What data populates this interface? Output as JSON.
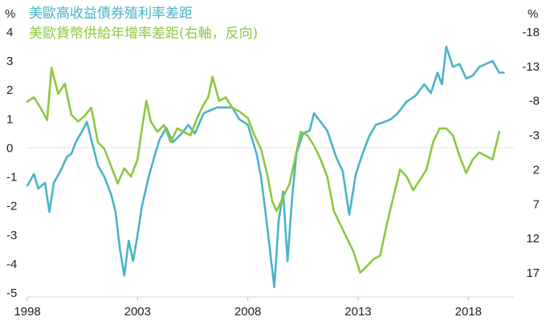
{
  "chart_data": {
    "type": "line",
    "left_unit": "%",
    "right_unit": "%",
    "y_left": {
      "range": [
        -5,
        4
      ],
      "ticks": [
        "4",
        "3",
        "2",
        "1",
        "0",
        "-1",
        "-2",
        "-3",
        "-4",
        "-5"
      ]
    },
    "y_right": {
      "range": [
        -18,
        17
      ],
      "reversed": true,
      "ticks": [
        "-18",
        "-13",
        "-8",
        "-3",
        "2",
        "7",
        "12",
        "17"
      ]
    },
    "x_ticks": [
      "1998",
      "2003",
      "2008",
      "2013",
      "2018"
    ],
    "grid": false,
    "legend_placement": "top-left",
    "series": [
      {
        "name": "美歐高收益債券殖利率差距",
        "axis": "left",
        "color": "#4BB3C7",
        "points": [
          [
            1998.0,
            -1.3
          ],
          [
            1998.3,
            -0.9
          ],
          [
            1998.5,
            -1.4
          ],
          [
            1998.8,
            -1.2
          ],
          [
            1999.0,
            -2.2
          ],
          [
            1999.2,
            -1.2
          ],
          [
            1999.5,
            -0.8
          ],
          [
            1999.8,
            -0.3
          ],
          [
            2000.0,
            -0.2
          ],
          [
            2000.2,
            0.2
          ],
          [
            2000.5,
            0.6
          ],
          [
            2000.7,
            0.9
          ],
          [
            2001.0,
            0.0
          ],
          [
            2001.2,
            -0.6
          ],
          [
            2001.5,
            -1.0
          ],
          [
            2001.8,
            -1.6
          ],
          [
            2002.0,
            -2.2
          ],
          [
            2002.2,
            -3.5
          ],
          [
            2002.4,
            -4.4
          ],
          [
            2002.6,
            -3.2
          ],
          [
            2002.8,
            -3.9
          ],
          [
            2003.0,
            -3.0
          ],
          [
            2003.2,
            -2.0
          ],
          [
            2003.5,
            -1.0
          ],
          [
            2003.8,
            -0.2
          ],
          [
            2004.0,
            0.3
          ],
          [
            2004.3,
            0.7
          ],
          [
            2004.6,
            0.2
          ],
          [
            2005.0,
            0.5
          ],
          [
            2005.3,
            0.8
          ],
          [
            2005.6,
            0.5
          ],
          [
            2006.0,
            1.2
          ],
          [
            2006.3,
            1.3
          ],
          [
            2006.6,
            1.4
          ],
          [
            2007.0,
            1.4
          ],
          [
            2007.3,
            1.4
          ],
          [
            2007.6,
            1.0
          ],
          [
            2008.0,
            0.8
          ],
          [
            2008.2,
            0.3
          ],
          [
            2008.4,
            -0.2
          ],
          [
            2008.6,
            -1.0
          ],
          [
            2008.8,
            -2.2
          ],
          [
            2009.0,
            -3.5
          ],
          [
            2009.2,
            -4.8
          ],
          [
            2009.4,
            -2.5
          ],
          [
            2009.6,
            -1.5
          ],
          [
            2009.8,
            -3.9
          ],
          [
            2010.0,
            -1.8
          ],
          [
            2010.2,
            -0.2
          ],
          [
            2010.5,
            0.5
          ],
          [
            2010.8,
            0.6
          ],
          [
            2011.0,
            1.2
          ],
          [
            2011.3,
            0.9
          ],
          [
            2011.6,
            0.6
          ],
          [
            2012.0,
            -0.3
          ],
          [
            2012.3,
            -0.8
          ],
          [
            2012.6,
            -2.3
          ],
          [
            2012.9,
            -0.9
          ],
          [
            2013.2,
            -0.2
          ],
          [
            2013.5,
            0.4
          ],
          [
            2013.8,
            0.8
          ],
          [
            2014.2,
            0.9
          ],
          [
            2014.5,
            1.0
          ],
          [
            2014.8,
            1.2
          ],
          [
            2015.2,
            1.6
          ],
          [
            2015.6,
            1.8
          ],
          [
            2016.0,
            2.2
          ],
          [
            2016.3,
            1.9
          ],
          [
            2016.6,
            2.6
          ],
          [
            2016.8,
            2.2
          ],
          [
            2017.0,
            3.5
          ],
          [
            2017.3,
            2.8
          ],
          [
            2017.6,
            2.9
          ],
          [
            2017.9,
            2.4
          ],
          [
            2018.2,
            2.5
          ],
          [
            2018.5,
            2.8
          ],
          [
            2018.8,
            2.9
          ],
          [
            2019.1,
            3.0
          ],
          [
            2019.4,
            2.6
          ],
          [
            2019.6,
            2.6
          ]
        ]
      },
      {
        "name": "美歐貨幣供給年增率差距(右軸，反向)",
        "axis": "right",
        "color": "#8CC83F",
        "points": [
          [
            1998.0,
            -7.9
          ],
          [
            1998.3,
            -8.5
          ],
          [
            1998.6,
            -7.0
          ],
          [
            1998.9,
            -5.2
          ],
          [
            1999.1,
            -12.8
          ],
          [
            1999.4,
            -9.0
          ],
          [
            1999.7,
            -10.5
          ],
          [
            2000.0,
            -6.0
          ],
          [
            2000.3,
            -5.0
          ],
          [
            2000.6,
            -5.8
          ],
          [
            2000.9,
            -7.0
          ],
          [
            2001.2,
            -2.0
          ],
          [
            2001.5,
            -1.0
          ],
          [
            2001.8,
            1.5
          ],
          [
            2002.1,
            4.0
          ],
          [
            2002.4,
            1.8
          ],
          [
            2002.7,
            3.0
          ],
          [
            2003.0,
            0.5
          ],
          [
            2003.2,
            -4.0
          ],
          [
            2003.4,
            -8.0
          ],
          [
            2003.6,
            -5.0
          ],
          [
            2003.9,
            -3.5
          ],
          [
            2004.2,
            -4.5
          ],
          [
            2004.5,
            -2.0
          ],
          [
            2004.8,
            -4.0
          ],
          [
            2005.1,
            -3.5
          ],
          [
            2005.4,
            -3.0
          ],
          [
            2005.7,
            -5.5
          ],
          [
            2006.0,
            -7.5
          ],
          [
            2006.2,
            -8.5
          ],
          [
            2006.4,
            -11.5
          ],
          [
            2006.7,
            -8.0
          ],
          [
            2007.0,
            -8.5
          ],
          [
            2007.3,
            -7.0
          ],
          [
            2007.6,
            -6.5
          ],
          [
            2008.0,
            -5.5
          ],
          [
            2008.3,
            -3.0
          ],
          [
            2008.6,
            -1.0
          ],
          [
            2008.9,
            3.0
          ],
          [
            2009.1,
            6.5
          ],
          [
            2009.3,
            8.0
          ],
          [
            2009.6,
            6.0
          ],
          [
            2009.9,
            4.0
          ],
          [
            2010.1,
            1.0
          ],
          [
            2010.4,
            -3.5
          ],
          [
            2010.7,
            -3.0
          ],
          [
            2011.0,
            -1.5
          ],
          [
            2011.3,
            0.5
          ],
          [
            2011.6,
            3.0
          ],
          [
            2011.9,
            8.0
          ],
          [
            2012.2,
            10.0
          ],
          [
            2012.5,
            12.0
          ],
          [
            2012.8,
            14.0
          ],
          [
            2013.1,
            17.0
          ],
          [
            2013.4,
            16.0
          ],
          [
            2013.7,
            15.0
          ],
          [
            2014.0,
            14.5
          ],
          [
            2014.3,
            10.0
          ],
          [
            2014.6,
            6.0
          ],
          [
            2014.9,
            2.0
          ],
          [
            2015.2,
            3.0
          ],
          [
            2015.5,
            5.0
          ],
          [
            2015.8,
            3.5
          ],
          [
            2016.1,
            2.0
          ],
          [
            2016.4,
            -2.0
          ],
          [
            2016.7,
            -4.0
          ],
          [
            2017.0,
            -4.0
          ],
          [
            2017.3,
            -3.0
          ],
          [
            2017.6,
            0.0
          ],
          [
            2017.9,
            2.5
          ],
          [
            2018.2,
            0.5
          ],
          [
            2018.5,
            -0.5
          ],
          [
            2018.8,
            0.0
          ],
          [
            2019.1,
            0.5
          ],
          [
            2019.4,
            -3.5
          ]
        ]
      }
    ]
  }
}
